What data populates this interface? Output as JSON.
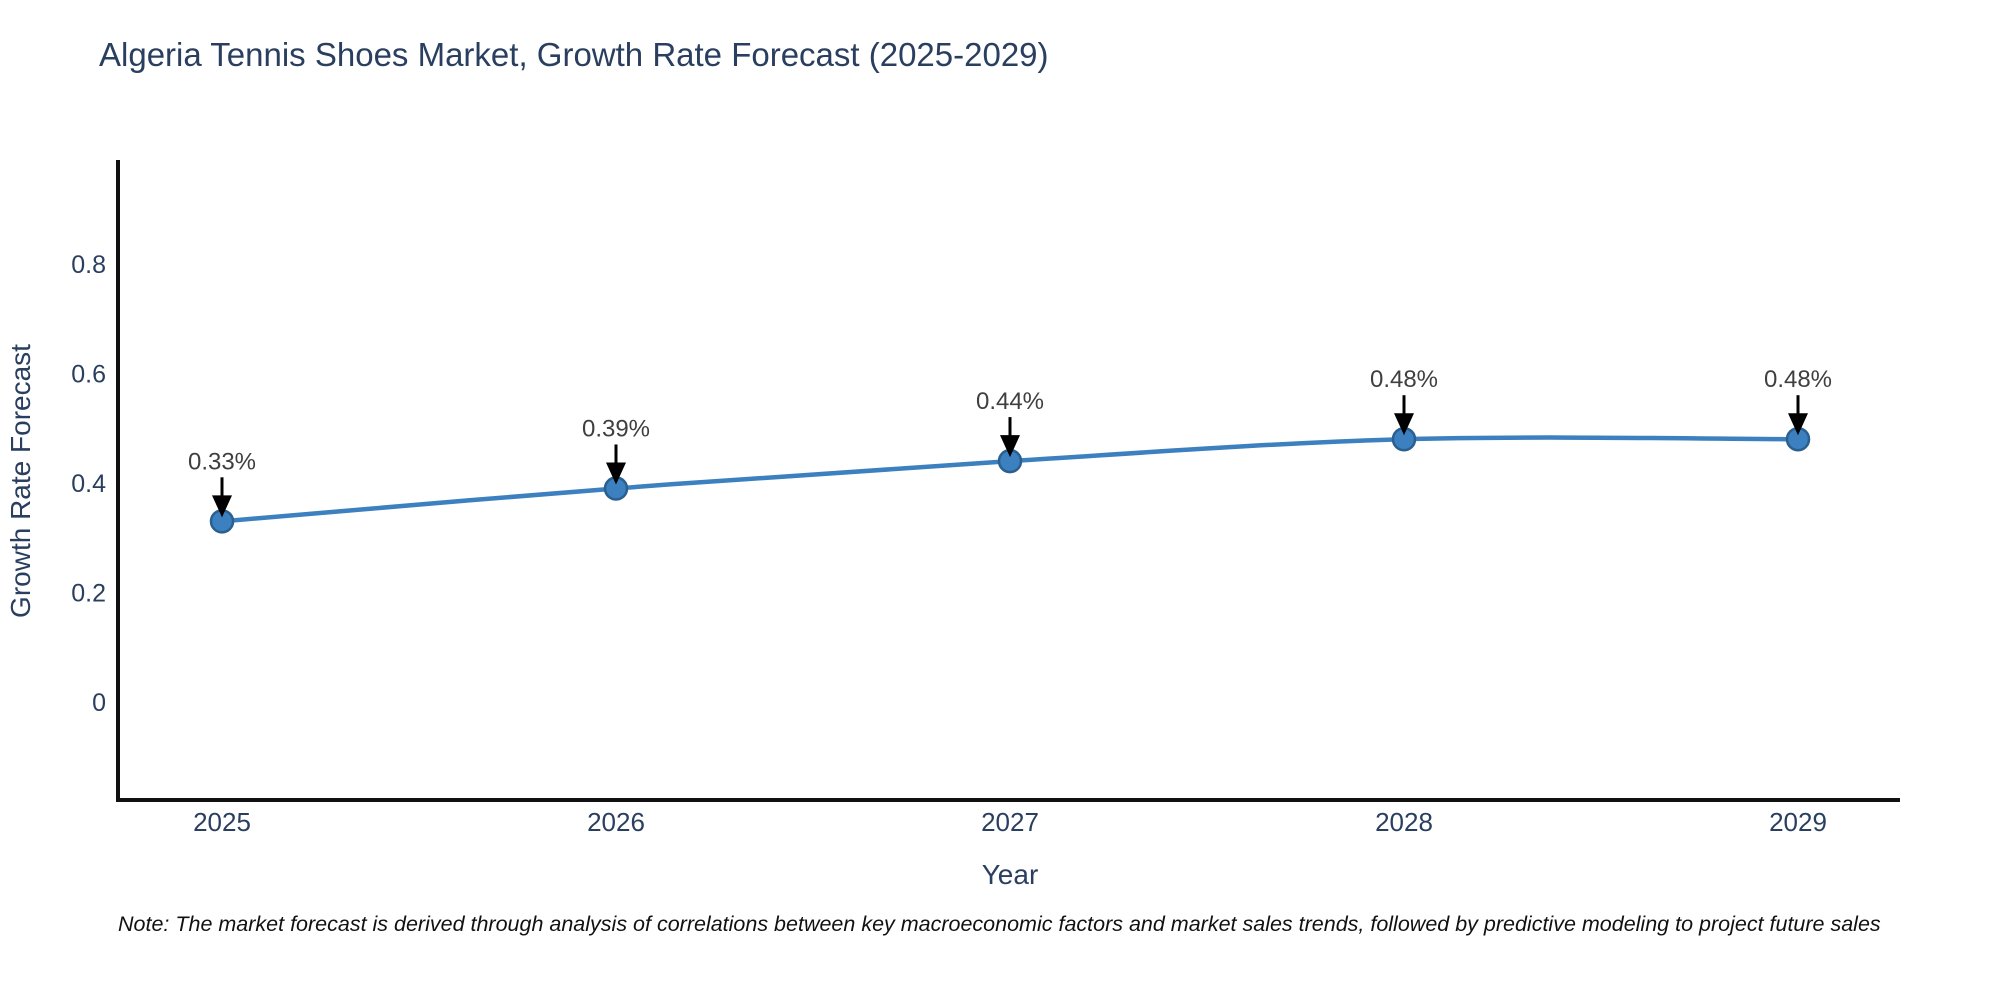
{
  "title": "Algeria Tennis Shoes Market, Growth Rate Forecast (2025-2029)",
  "note": "Note: The market forecast is derived through analysis of correlations between key macroeconomic factors and market sales trends, followed by predictive modeling to project future sales",
  "chart_data": {
    "type": "line",
    "title": "Algeria Tennis Shoes Market, Growth Rate Forecast (2025-2029)",
    "xlabel": "Year",
    "ylabel": "Growth Rate Forecast",
    "x": [
      2025,
      2026,
      2027,
      2028,
      2029
    ],
    "values": [
      0.33,
      0.39,
      0.44,
      0.48,
      0.48
    ],
    "point_labels": [
      "0.33%",
      "0.39%",
      "0.44%",
      "0.48%",
      "0.48%"
    ],
    "yticks": [
      0,
      0.2,
      0.4,
      0.6,
      0.8
    ],
    "ylim": [
      -0.18,
      0.99
    ],
    "grid": false,
    "legend": "none",
    "line_color": "#3c80c0",
    "marker_color": "#3c80c0",
    "marker_edge_color": "#2a5f8f",
    "arrow_color": "#000000",
    "axis_color": "#111111",
    "tick_color": "#2a3f5f",
    "annotation_color": "#3f3f3f"
  }
}
